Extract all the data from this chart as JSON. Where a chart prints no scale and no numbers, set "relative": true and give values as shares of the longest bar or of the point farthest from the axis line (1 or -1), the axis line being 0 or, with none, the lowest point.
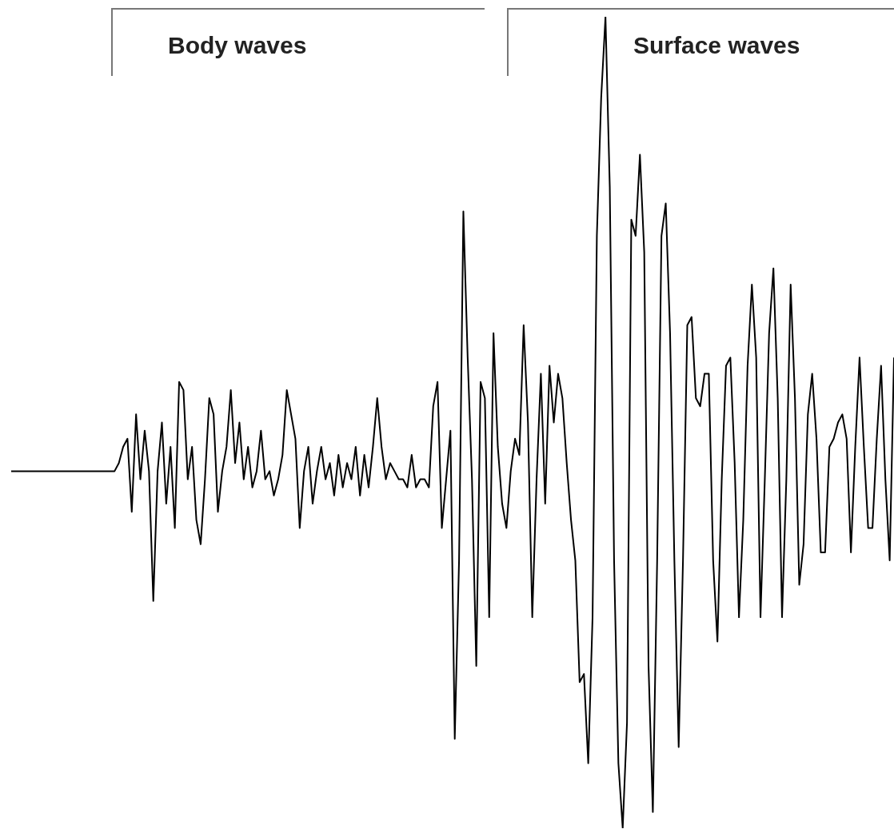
{
  "chart_data": {
    "type": "line",
    "relative": true,
    "tick_labels": false,
    "annotations": [
      "Body waves",
      "Surface waves"
    ],
    "categories": [
      null,
      null,
      null,
      null,
      null,
      null,
      null,
      null,
      null,
      null,
      null,
      null,
      null,
      null,
      null,
      null,
      null,
      null,
      null,
      null,
      null,
      null,
      null,
      null,
      null,
      null,
      null,
      null,
      null,
      null,
      null,
      null,
      null,
      null,
      null,
      null,
      null,
      null,
      null,
      null,
      null,
      null,
      null,
      null,
      null,
      null,
      null,
      null,
      null,
      null,
      null,
      null,
      null,
      null,
      null,
      null,
      null,
      null,
      null,
      null,
      null,
      null,
      null,
      null,
      null,
      null,
      null,
      null,
      null,
      null,
      null,
      null,
      null,
      null,
      null,
      null,
      null,
      null,
      null,
      null,
      null,
      null,
      null,
      null,
      null,
      null,
      null,
      null,
      null,
      null,
      null,
      null,
      null,
      null,
      null,
      null,
      null,
      null,
      null,
      null,
      null,
      null,
      null,
      null,
      null,
      null,
      null,
      null,
      null,
      null,
      null,
      null,
      null,
      null,
      null,
      null,
      null,
      null,
      null,
      null,
      null,
      null,
      null,
      null,
      null,
      null,
      null,
      null,
      null,
      null,
      null,
      null,
      null,
      null,
      null,
      null,
      null,
      null,
      null,
      null,
      null,
      null,
      null,
      null,
      null,
      null,
      null,
      null,
      null,
      null,
      null,
      null,
      null,
      null,
      null,
      null,
      null,
      null,
      null,
      null,
      null,
      null,
      null,
      null,
      null,
      null,
      null,
      null,
      null,
      null,
      null,
      null,
      null,
      null,
      null,
      null,
      null,
      null,
      null,
      null,
      null,
      null,
      null,
      null,
      null,
      null,
      null,
      null,
      null,
      null,
      null,
      null,
      null,
      null,
      null,
      null,
      null,
      null,
      null,
      null,
      null,
      null,
      null,
      null,
      null,
      null
    ],
    "series": [
      {
        "color": "#000000",
        "values": [
          0.44,
          0.44,
          0.44,
          0.44,
          0.44,
          0.44,
          0.44,
          0.44,
          0.44,
          0.44,
          0.44,
          0.44,
          0.44,
          0.44,
          0.44,
          0.44,
          0.44,
          0.44,
          0.44,
          0.44,
          0.44,
          0.44,
          0.44,
          0.44,
          0.44,
          0.45,
          0.47,
          0.48,
          0.39,
          0.51,
          0.43,
          0.49,
          0.44,
          0.28,
          0.44,
          0.5,
          0.4,
          0.47,
          0.37,
          0.55,
          0.54,
          0.43,
          0.47,
          0.38,
          0.35,
          0.43,
          0.53,
          0.51,
          0.39,
          0.44,
          0.47,
          0.54,
          0.45,
          0.5,
          0.43,
          0.47,
          0.42,
          0.44,
          0.49,
          0.43,
          0.44,
          0.41,
          0.43,
          0.46,
          0.54,
          0.51,
          0.48,
          0.37,
          0.44,
          0.47,
          0.4,
          0.44,
          0.47,
          0.43,
          0.45,
          0.41,
          0.46,
          0.42,
          0.45,
          0.43,
          0.47,
          0.41,
          0.46,
          0.42,
          0.47,
          0.53,
          0.47,
          0.43,
          0.45,
          0.44,
          0.43,
          0.43,
          0.42,
          0.46,
          0.42,
          0.43,
          0.43,
          0.42,
          0.52,
          0.55,
          0.37,
          0.43,
          0.49,
          0.11,
          0.33,
          0.76,
          0.58,
          0.43,
          0.2,
          0.55,
          0.53,
          0.26,
          0.61,
          0.47,
          0.4,
          0.37,
          0.44,
          0.48,
          0.46,
          0.62,
          0.5,
          0.26,
          0.43,
          0.56,
          0.4,
          0.57,
          0.5,
          0.56,
          0.53,
          0.45,
          0.38,
          0.33,
          0.18,
          0.19,
          0.08,
          0.26,
          0.73,
          0.9,
          1.0,
          0.79,
          0.33,
          0.08,
          0.0,
          0.13,
          0.75,
          0.73,
          0.83,
          0.71,
          0.2,
          0.02,
          0.33,
          0.73,
          0.77,
          0.61,
          0.33,
          0.1,
          0.33,
          0.62,
          0.63,
          0.53,
          0.52,
          0.56,
          0.56,
          0.33,
          0.23,
          0.43,
          0.57,
          0.58,
          0.45,
          0.26,
          0.38,
          0.57,
          0.67,
          0.58,
          0.26,
          0.43,
          0.61,
          0.69,
          0.53,
          0.26,
          0.43,
          0.67,
          0.53,
          0.3,
          0.35,
          0.51,
          0.56,
          0.48,
          0.34,
          0.34,
          0.47,
          0.48,
          0.5,
          0.51,
          0.48,
          0.34,
          0.47,
          0.58,
          0.47,
          0.37,
          0.37,
          0.48,
          0.57,
          0.43,
          0.33,
          0.58
        ]
      }
    ]
  }
}
